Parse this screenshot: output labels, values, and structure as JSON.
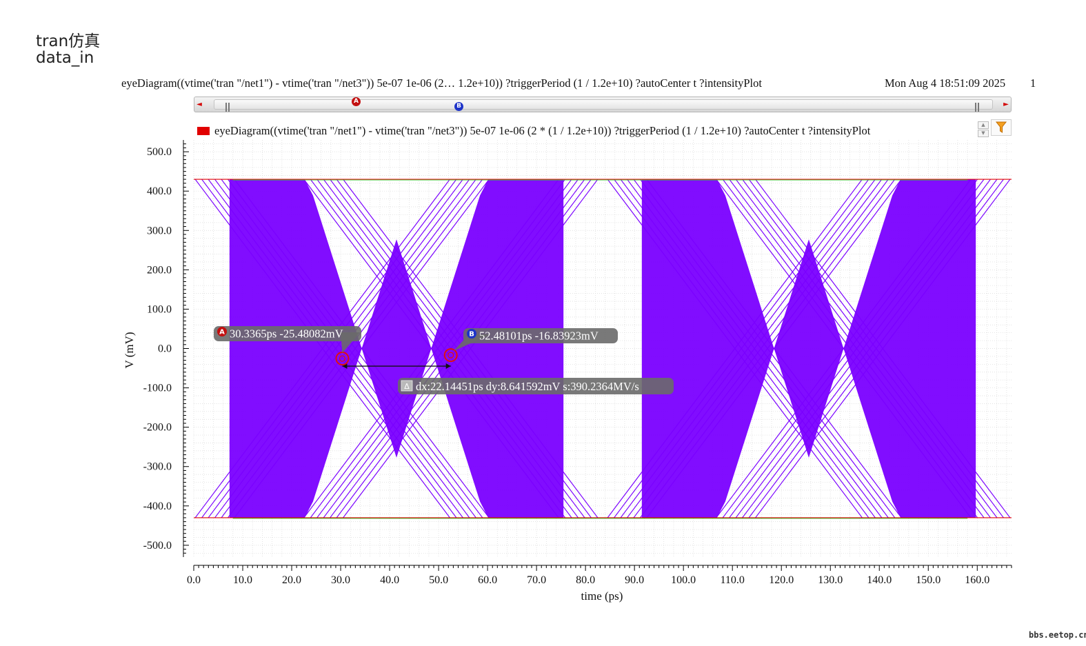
{
  "captions": [
    "tran仿真",
    "data_in"
  ],
  "header": {
    "title": "eyeDiagram((vtime('tran \"/net1\") - vtime('tran \"/net3\")) 5e-07 1e-06 (2… 1.2e+10)) ?triggerPeriod (1 / 1.2e+10) ?autoCenter t ?intensityPlot",
    "date": "Mon Aug 4 18:51:09 2025",
    "page": "1"
  },
  "scrollbar": {
    "marker_a": "A",
    "marker_b": "B",
    "left_arrow": "◄",
    "right_arrow": "►"
  },
  "legend": {
    "label": "eyeDiagram((vtime('tran \"/net1\") - vtime('tran \"/net3\")) 5e-07 1e-06 (2 * (1 / 1.2e+10)) ?triggerPeriod (1 / 1.2e+10) ?autoCenter t ?intensityPlot",
    "color": "#e10000",
    "filter_icon": "funnel-icon"
  },
  "watermark": "bbs.eetop.cn",
  "chart_data": {
    "type": "line",
    "title": "",
    "xlabel": "time (ps)",
    "ylabel": "V (mV)",
    "xlim": [
      0,
      167
    ],
    "ylim": [
      -530,
      530
    ],
    "x_ticks": [
      0,
      10,
      20,
      30,
      40,
      50,
      60,
      70,
      80,
      90,
      100,
      110,
      120,
      130,
      140,
      150,
      160
    ],
    "x_tick_labels": [
      "0.0",
      "10.0",
      "20.0",
      "30.0",
      "40.0",
      "50.0",
      "60.0",
      "70.0",
      "80.0",
      "90.0",
      "100.0",
      "110.0",
      "120.0",
      "130.0",
      "140.0",
      "150.0",
      "160.0"
    ],
    "y_ticks": [
      500,
      400,
      300,
      200,
      100,
      0,
      -100,
      -200,
      -300,
      -400,
      -500
    ],
    "y_tick_labels": [
      "500.0",
      "400.0",
      "300.0",
      "200.0",
      "100.0",
      "0.0",
      "-100.0",
      "-200.0",
      "-300.0",
      "-400.0",
      "-500.0"
    ],
    "grid": true,
    "series_color": "#7a00ff",
    "high_level_mv": 430,
    "low_level_mv": -430,
    "crossings_ps": [
      30.3,
      52.5,
      114.5,
      136.7
    ],
    "edge_spread_ps": 4,
    "eye_period_ps": 84.2,
    "markers": [
      {
        "id": "A",
        "x": 30.3365,
        "y": -25.48082,
        "label": "30.3365ps -25.48082mV",
        "color": "#c21010"
      },
      {
        "id": "B",
        "x": 52.48101,
        "y": -16.83923,
        "label": "52.48101ps -16.83923mV",
        "color": "#1d33c8"
      }
    ],
    "delta": {
      "label": "dx:22.14451ps dy:8.641592mV s:390.2364MV/s",
      "symbol": "Δ"
    }
  }
}
